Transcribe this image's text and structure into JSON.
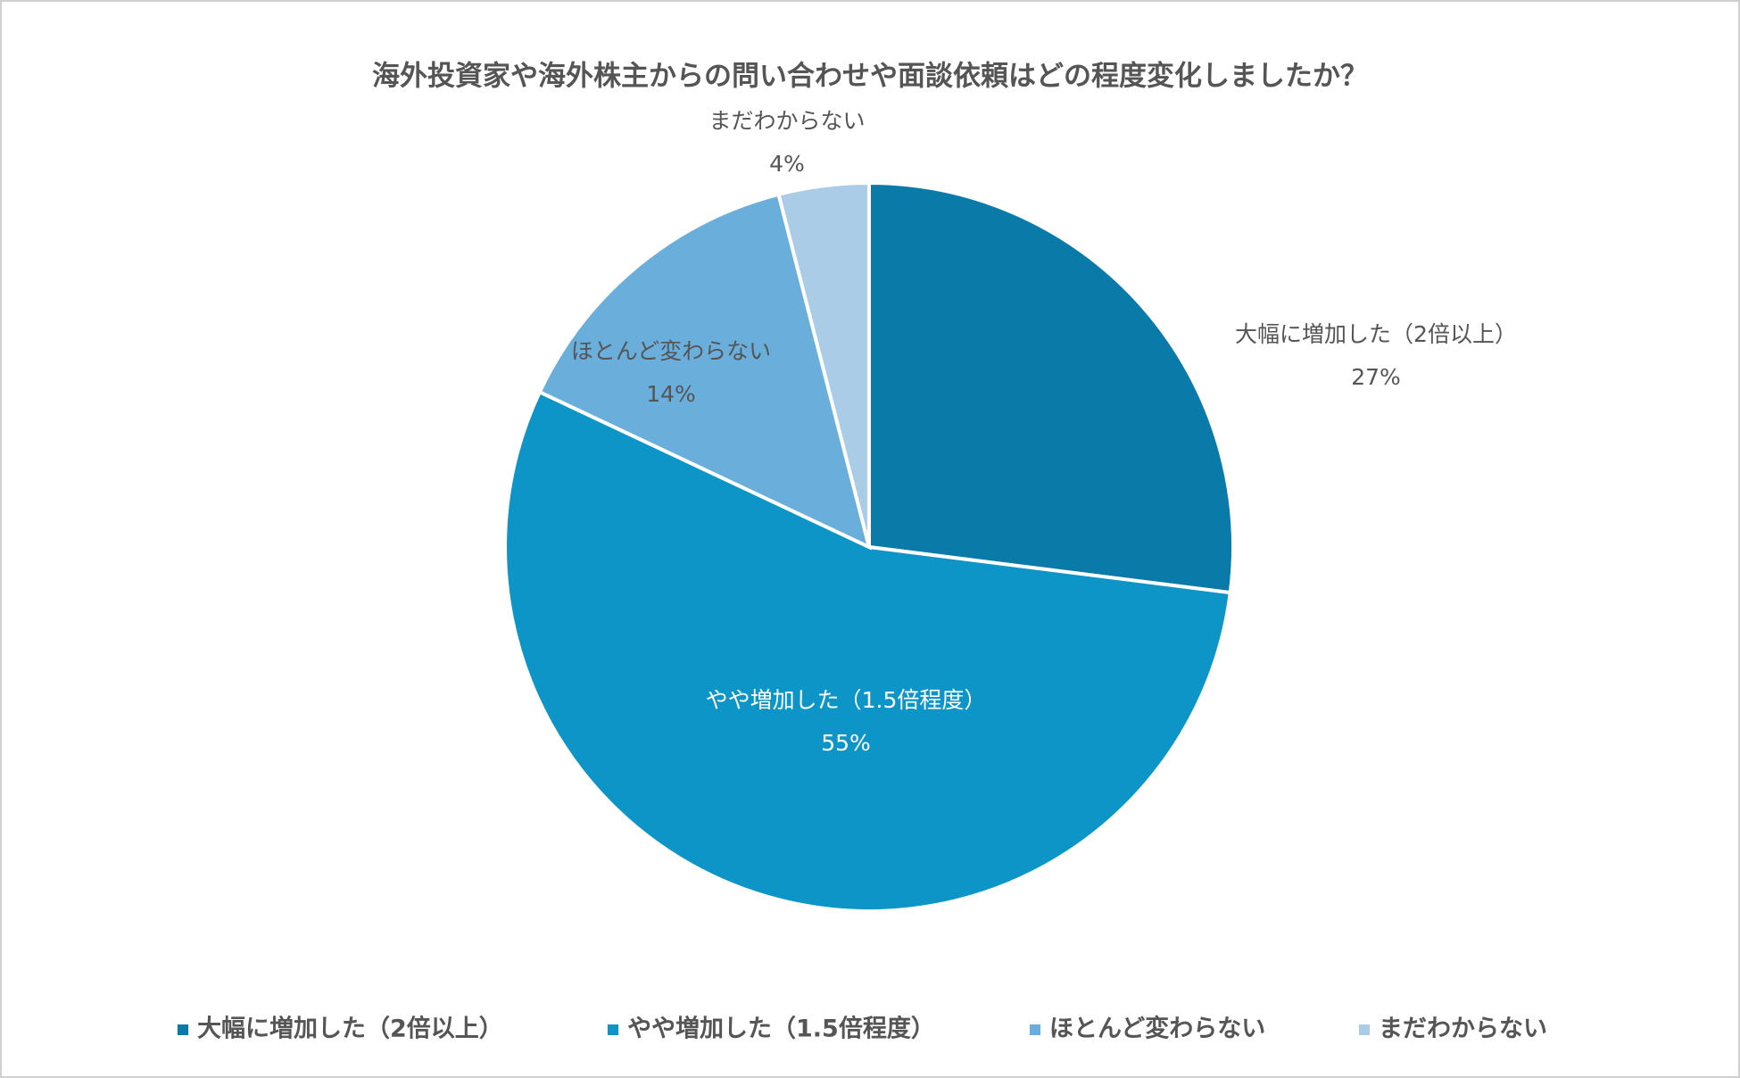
{
  "chart_data": {
    "type": "pie",
    "title": "海外投資家や海外株主からの問い合わせや面談依頼はどの程度変化しましたか？",
    "categories": [
      "大幅に増加した（2倍以上）",
      "やや増加した（1.5倍程度）",
      "ほとんど変わらない",
      "まだわからない"
    ],
    "values": [
      27,
      55,
      14,
      4
    ],
    "value_labels": [
      "27%",
      "55%",
      "14%",
      "4%"
    ],
    "colors": [
      "#0a7aa8",
      "#0d95c8",
      "#6aaedb",
      "#abcce6"
    ],
    "legend": "bottom"
  }
}
